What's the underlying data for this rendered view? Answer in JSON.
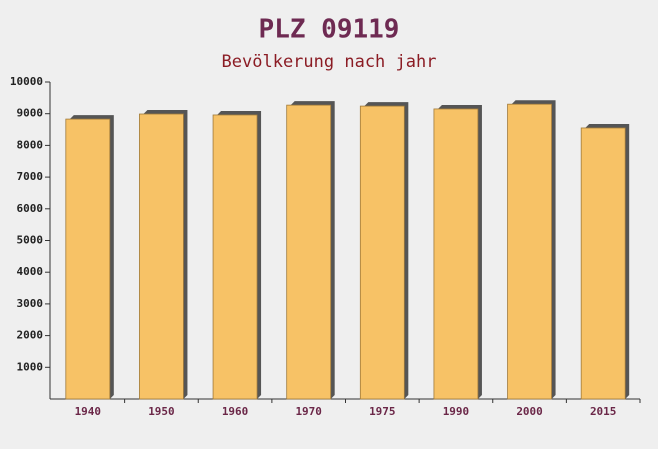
{
  "chart_data": {
    "type": "bar",
    "title": "PLZ 09119",
    "subtitle": "Bevölkerung nach jahr",
    "categories": [
      "1940",
      "1950",
      "1960",
      "1970",
      "1975",
      "1990",
      "2000",
      "2015"
    ],
    "values": [
      8830,
      8990,
      8960,
      9270,
      9240,
      9150,
      9300,
      8550
    ],
    "color": "#f7c266",
    "ylim": [
      0,
      10000
    ],
    "yticks": [
      1000,
      2000,
      3000,
      4000,
      5000,
      6000,
      7000,
      8000,
      9000,
      10000
    ],
    "grid": false
  }
}
